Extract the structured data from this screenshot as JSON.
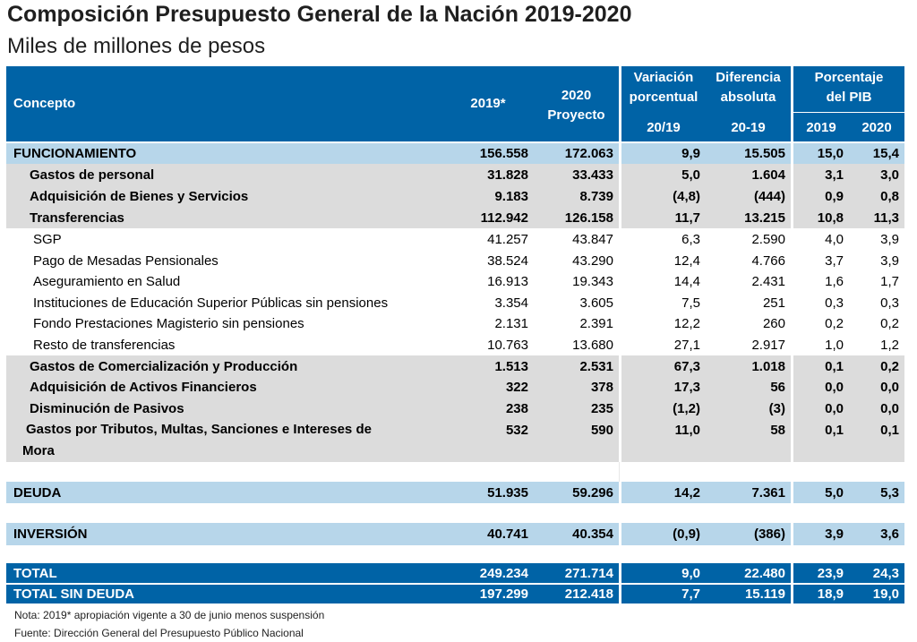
{
  "title": "Composición Presupuesto General de la Nación 2019-2020",
  "subtitle": "Miles de millones de pesos",
  "headers": {
    "concepto": "Concepto",
    "y2019": "2019*",
    "y2020_line1": "2020",
    "y2020_line2": "Proyecto",
    "var_line1": "Variación",
    "var_line2": "porcentual",
    "var_sub": "20/19",
    "dif_line1": "Diferencia",
    "dif_line2": "absoluta",
    "dif_sub": "20-19",
    "pib_line1": "Porcentaje",
    "pib_line2": "del PIB",
    "pib_2019": "2019",
    "pib_2020": "2020"
  },
  "rows": {
    "funcionamiento": {
      "label": "FUNCIONAMIENTO",
      "v2019": "156.558",
      "v2020": "172.063",
      "var": "9,9",
      "dif": "15.505",
      "p2019": "15,0",
      "p2020": "15,4"
    },
    "personal": {
      "label": "Gastos de personal",
      "v2019": "31.828",
      "v2020": "33.433",
      "var": "5,0",
      "dif": "1.604",
      "p2019": "3,1",
      "p2020": "3,0"
    },
    "bienes": {
      "label": "Adquisición de Bienes y Servicios",
      "v2019": "9.183",
      "v2020": "8.739",
      "var": "(4,8)",
      "dif": "(444)",
      "p2019": "0,9",
      "p2020": "0,8"
    },
    "transferencias": {
      "label": "Transferencias",
      "v2019": "112.942",
      "v2020": "126.158",
      "var": "11,7",
      "dif": "13.215",
      "p2019": "10,8",
      "p2020": "11,3"
    },
    "sgp": {
      "label": "SGP",
      "v2019": "41.257",
      "v2020": "43.847",
      "var": "6,3",
      "dif": "2.590",
      "p2019": "4,0",
      "p2020": "3,9"
    },
    "mesadas": {
      "label": "Pago de Mesadas Pensionales",
      "v2019": "38.524",
      "v2020": "43.290",
      "var": "12,4",
      "dif": "4.766",
      "p2019": "3,7",
      "p2020": "3,9"
    },
    "salud": {
      "label": "Aseguramiento en Salud",
      "v2019": "16.913",
      "v2020": "19.343",
      "var": "14,4",
      "dif": "2.431",
      "p2019": "1,6",
      "p2020": "1,7"
    },
    "educacion": {
      "label": "Instituciones de Educación Superior Públicas sin pensiones",
      "v2019": "3.354",
      "v2020": "3.605",
      "var": "7,5",
      "dif": "251",
      "p2019": "0,3",
      "p2020": "0,3"
    },
    "magisterio": {
      "label": "Fondo Prestaciones Magisterio sin pensiones",
      "v2019": "2.131",
      "v2020": "2.391",
      "var": "12,2",
      "dif": "260",
      "p2019": "0,2",
      "p2020": "0,2"
    },
    "resto": {
      "label": "Resto de transferencias",
      "v2019": "10.763",
      "v2020": "13.680",
      "var": "27,1",
      "dif": "2.917",
      "p2019": "1,0",
      "p2020": "1,2"
    },
    "comercializacion": {
      "label": "Gastos de Comercialización y Producción",
      "v2019": "1.513",
      "v2020": "2.531",
      "var": "67,3",
      "dif": "1.018",
      "p2019": "0,1",
      "p2020": "0,2"
    },
    "activos": {
      "label": "Adquisición de Activos Financieros",
      "v2019": "322",
      "v2020": "378",
      "var": "17,3",
      "dif": "56",
      "p2019": "0,0",
      "p2020": "0,0"
    },
    "pasivos": {
      "label": "Disminución de Pasivos",
      "v2019": "238",
      "v2020": "235",
      "var": "(1,2)",
      "dif": "(3)",
      "p2019": "0,0",
      "p2020": "0,0"
    },
    "tributos": {
      "label_line1": "Gastos por Tributos, Multas, Sanciones e Intereses de",
      "label_line2": "Mora",
      "v2019": "532",
      "v2020": "590",
      "var": "11,0",
      "dif": "58",
      "p2019": "0,1",
      "p2020": "0,1"
    },
    "deuda": {
      "label": "DEUDA",
      "v2019": "51.935",
      "v2020": "59.296",
      "var": "14,2",
      "dif": "7.361",
      "p2019": "5,0",
      "p2020": "5,3"
    },
    "inversion": {
      "label": "INVERSIÓN",
      "v2019": "40.741",
      "v2020": "40.354",
      "var": "(0,9)",
      "dif": "(386)",
      "p2019": "3,9",
      "p2020": "3,6"
    },
    "total": {
      "label": "TOTAL",
      "v2019": "249.234",
      "v2020": "271.714",
      "var": "9,0",
      "dif": "22.480",
      "p2019": "23,9",
      "p2020": "24,3"
    },
    "total_sin_deuda": {
      "label": "TOTAL SIN DEUDA",
      "v2019": "197.299",
      "v2020": "212.418",
      "var": "7,7",
      "dif": "15.119",
      "p2019": "18,9",
      "p2020": "19,0"
    }
  },
  "notes": {
    "note1": "Nota: 2019* apropiación vigente a 30 de junio menos suspensión",
    "note2": "Fuente: Dirección General del Presupuesto Público Nacional"
  },
  "colors": {
    "header_blue": "#0063a6",
    "light_blue": "#b7d6ea",
    "gray": "#dcdcdc"
  }
}
